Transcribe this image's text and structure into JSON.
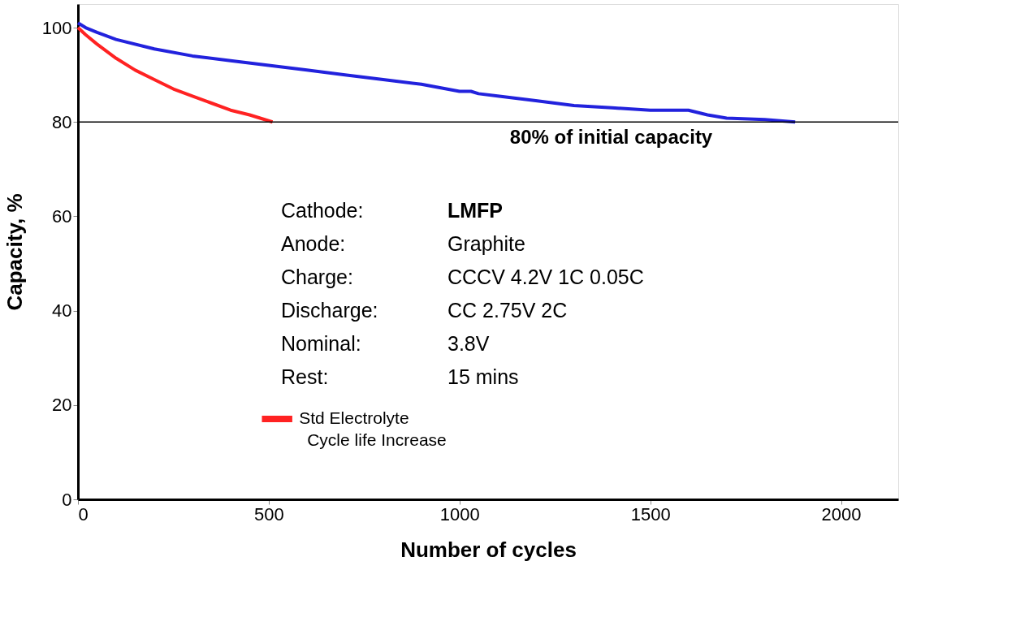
{
  "chart_data": {
    "type": "line",
    "xlabel": "Number of cycles",
    "ylabel": "Capacity, %",
    "xlim": [
      0,
      2150
    ],
    "xticks": [
      0,
      500,
      1000,
      1500,
      2000
    ],
    "ylim": [
      0,
      105
    ],
    "yticks": [
      0,
      20,
      40,
      60,
      80,
      100
    ],
    "grid": false,
    "legend": "bottom",
    "marker": "none",
    "line_style": "solid",
    "series": [
      {
        "color": "#2222dd",
        "x": [
          0,
          20,
          50,
          100,
          200,
          300,
          400,
          500,
          600,
          700,
          800,
          900,
          1000,
          1030,
          1050,
          1100,
          1200,
          1300,
          1400,
          1500,
          1550,
          1600,
          1650,
          1700,
          1800,
          1880
        ],
        "values": [
          101,
          100,
          99,
          97.5,
          95.5,
          94,
          93,
          92,
          91,
          90,
          89,
          88,
          86.5,
          86.5,
          86,
          85.5,
          84.5,
          83.5,
          83,
          82.5,
          82.5,
          82.5,
          81.5,
          80.8,
          80.5,
          80
        ]
      },
      {
        "name": "Std Electrolyte",
        "color": "#ff2222",
        "x": [
          0,
          20,
          50,
          100,
          150,
          200,
          250,
          300,
          350,
          400,
          450,
          510
        ],
        "values": [
          100,
          98.5,
          96.5,
          93.5,
          91,
          89,
          87,
          85.5,
          84,
          82.5,
          81.5,
          80
        ]
      }
    ],
    "ref_lines": [
      {
        "axis": "y",
        "value": 80,
        "label": "80% of initial capacity",
        "color": "#000000"
      }
    ],
    "annotations": [
      "Cathode:  LMFP",
      "Anode:  Graphite",
      "Charge:  CCCV 4.2V 1C 0.05C",
      "Discharge:  CC 2.75V 2C",
      "Nominal:  3.8V",
      "Rest:  15 mins",
      "Cycle life Increase"
    ]
  }
}
